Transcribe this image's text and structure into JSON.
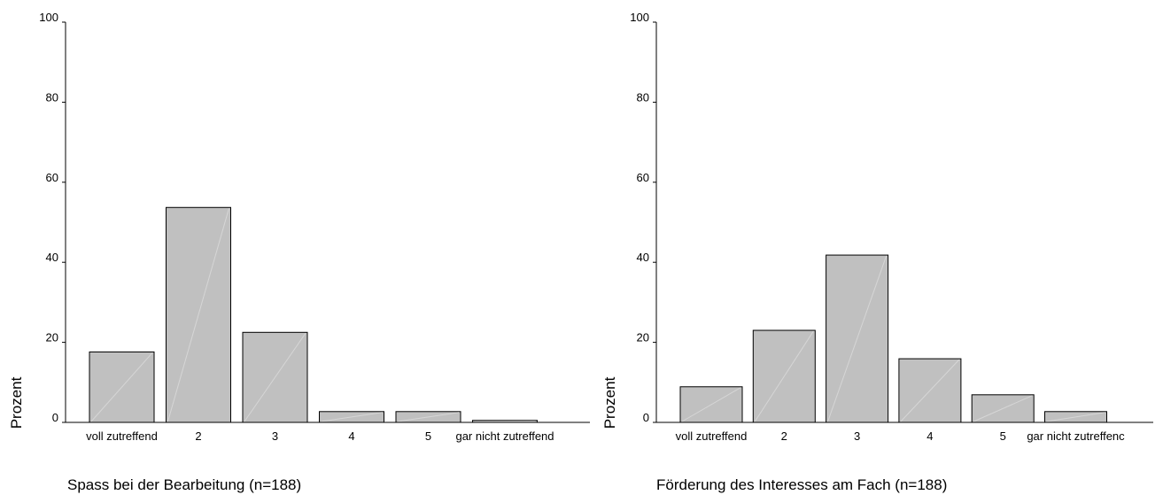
{
  "chart_data": [
    {
      "type": "bar",
      "title": "Spass bei der Bearbeitung (n=188)",
      "ylabel": "Prozent",
      "categories": [
        "voll zutreffend",
        "2",
        "3",
        "4",
        "5",
        "gar nicht zutreffend"
      ],
      "values": [
        17.6,
        53.7,
        22.5,
        2.7,
        2.7,
        0.5
      ],
      "ylim": [
        0,
        100
      ],
      "yticks": [
        "0",
        "20",
        "40",
        "60",
        "80",
        "100"
      ],
      "grid": false,
      "bar_color": "#c0c0c0"
    },
    {
      "type": "bar",
      "title": "Förderung des Interesses am Fach (n=188)",
      "ylabel": "Prozent",
      "categories": [
        "voll zutreffend",
        "2",
        "3",
        "4",
        "5",
        "gar nicht zutreffenc"
      ],
      "values": [
        8.9,
        23.0,
        41.8,
        15.9,
        6.9,
        2.7
      ],
      "ylim": [
        0,
        100
      ],
      "yticks": [
        "0",
        "20",
        "40",
        "60",
        "80",
        "100"
      ],
      "grid": false,
      "bar_color": "#c0c0c0"
    }
  ]
}
